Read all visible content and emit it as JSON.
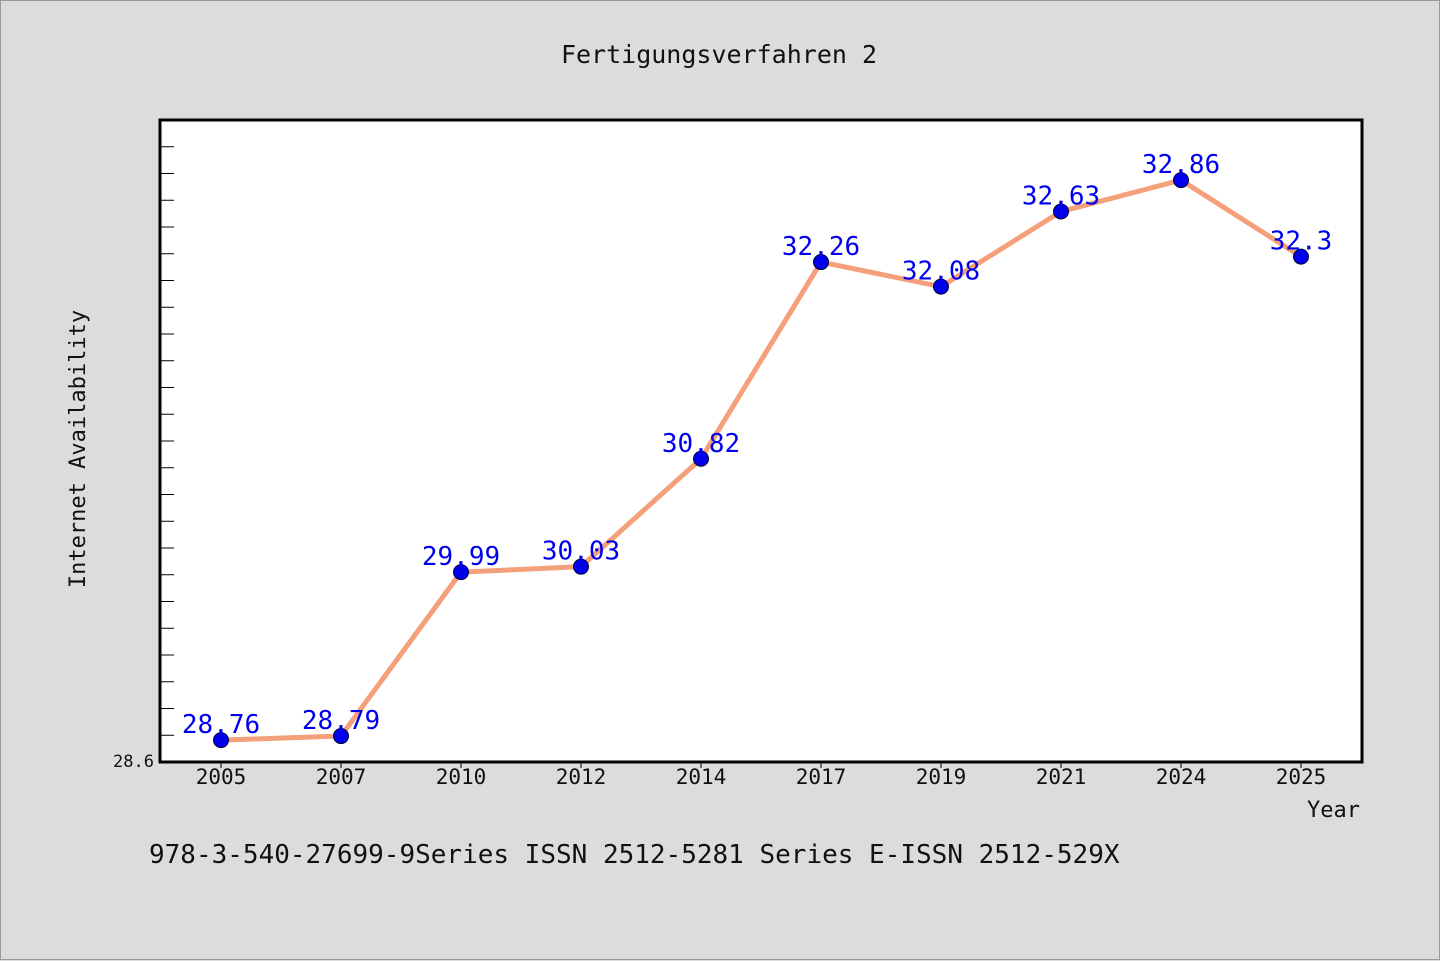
{
  "chart_data": {
    "type": "line",
    "title": "Fertigungsverfahren 2",
    "xlabel": "Year",
    "ylabel": "Internet Availability",
    "categories": [
      "2005",
      "2007",
      "2010",
      "2012",
      "2014",
      "2017",
      "2019",
      "2021",
      "2024",
      "2025"
    ],
    "series": [
      {
        "values": [
          28.76,
          28.79,
          29.99,
          30.03,
          30.82,
          32.26,
          32.08,
          32.63,
          32.86,
          32.3
        ],
        "labels": [
          "28.76",
          "28.79",
          "29.99",
          "30.03",
          "30.82",
          "32.26",
          "32.08",
          "32.63",
          "32.86",
          "32.3"
        ],
        "line_color": "#f4a07a",
        "marker_color": "#0000ee"
      }
    ],
    "ylim": [
      28.6,
      33.3
    ],
    "ytick_labels": [
      "28.6"
    ],
    "grid": false,
    "label_color": "#0000ee"
  },
  "footer_note": "978-3-540-27699-9Series ISSN 2512-5281 Series E-ISSN 2512-529X"
}
